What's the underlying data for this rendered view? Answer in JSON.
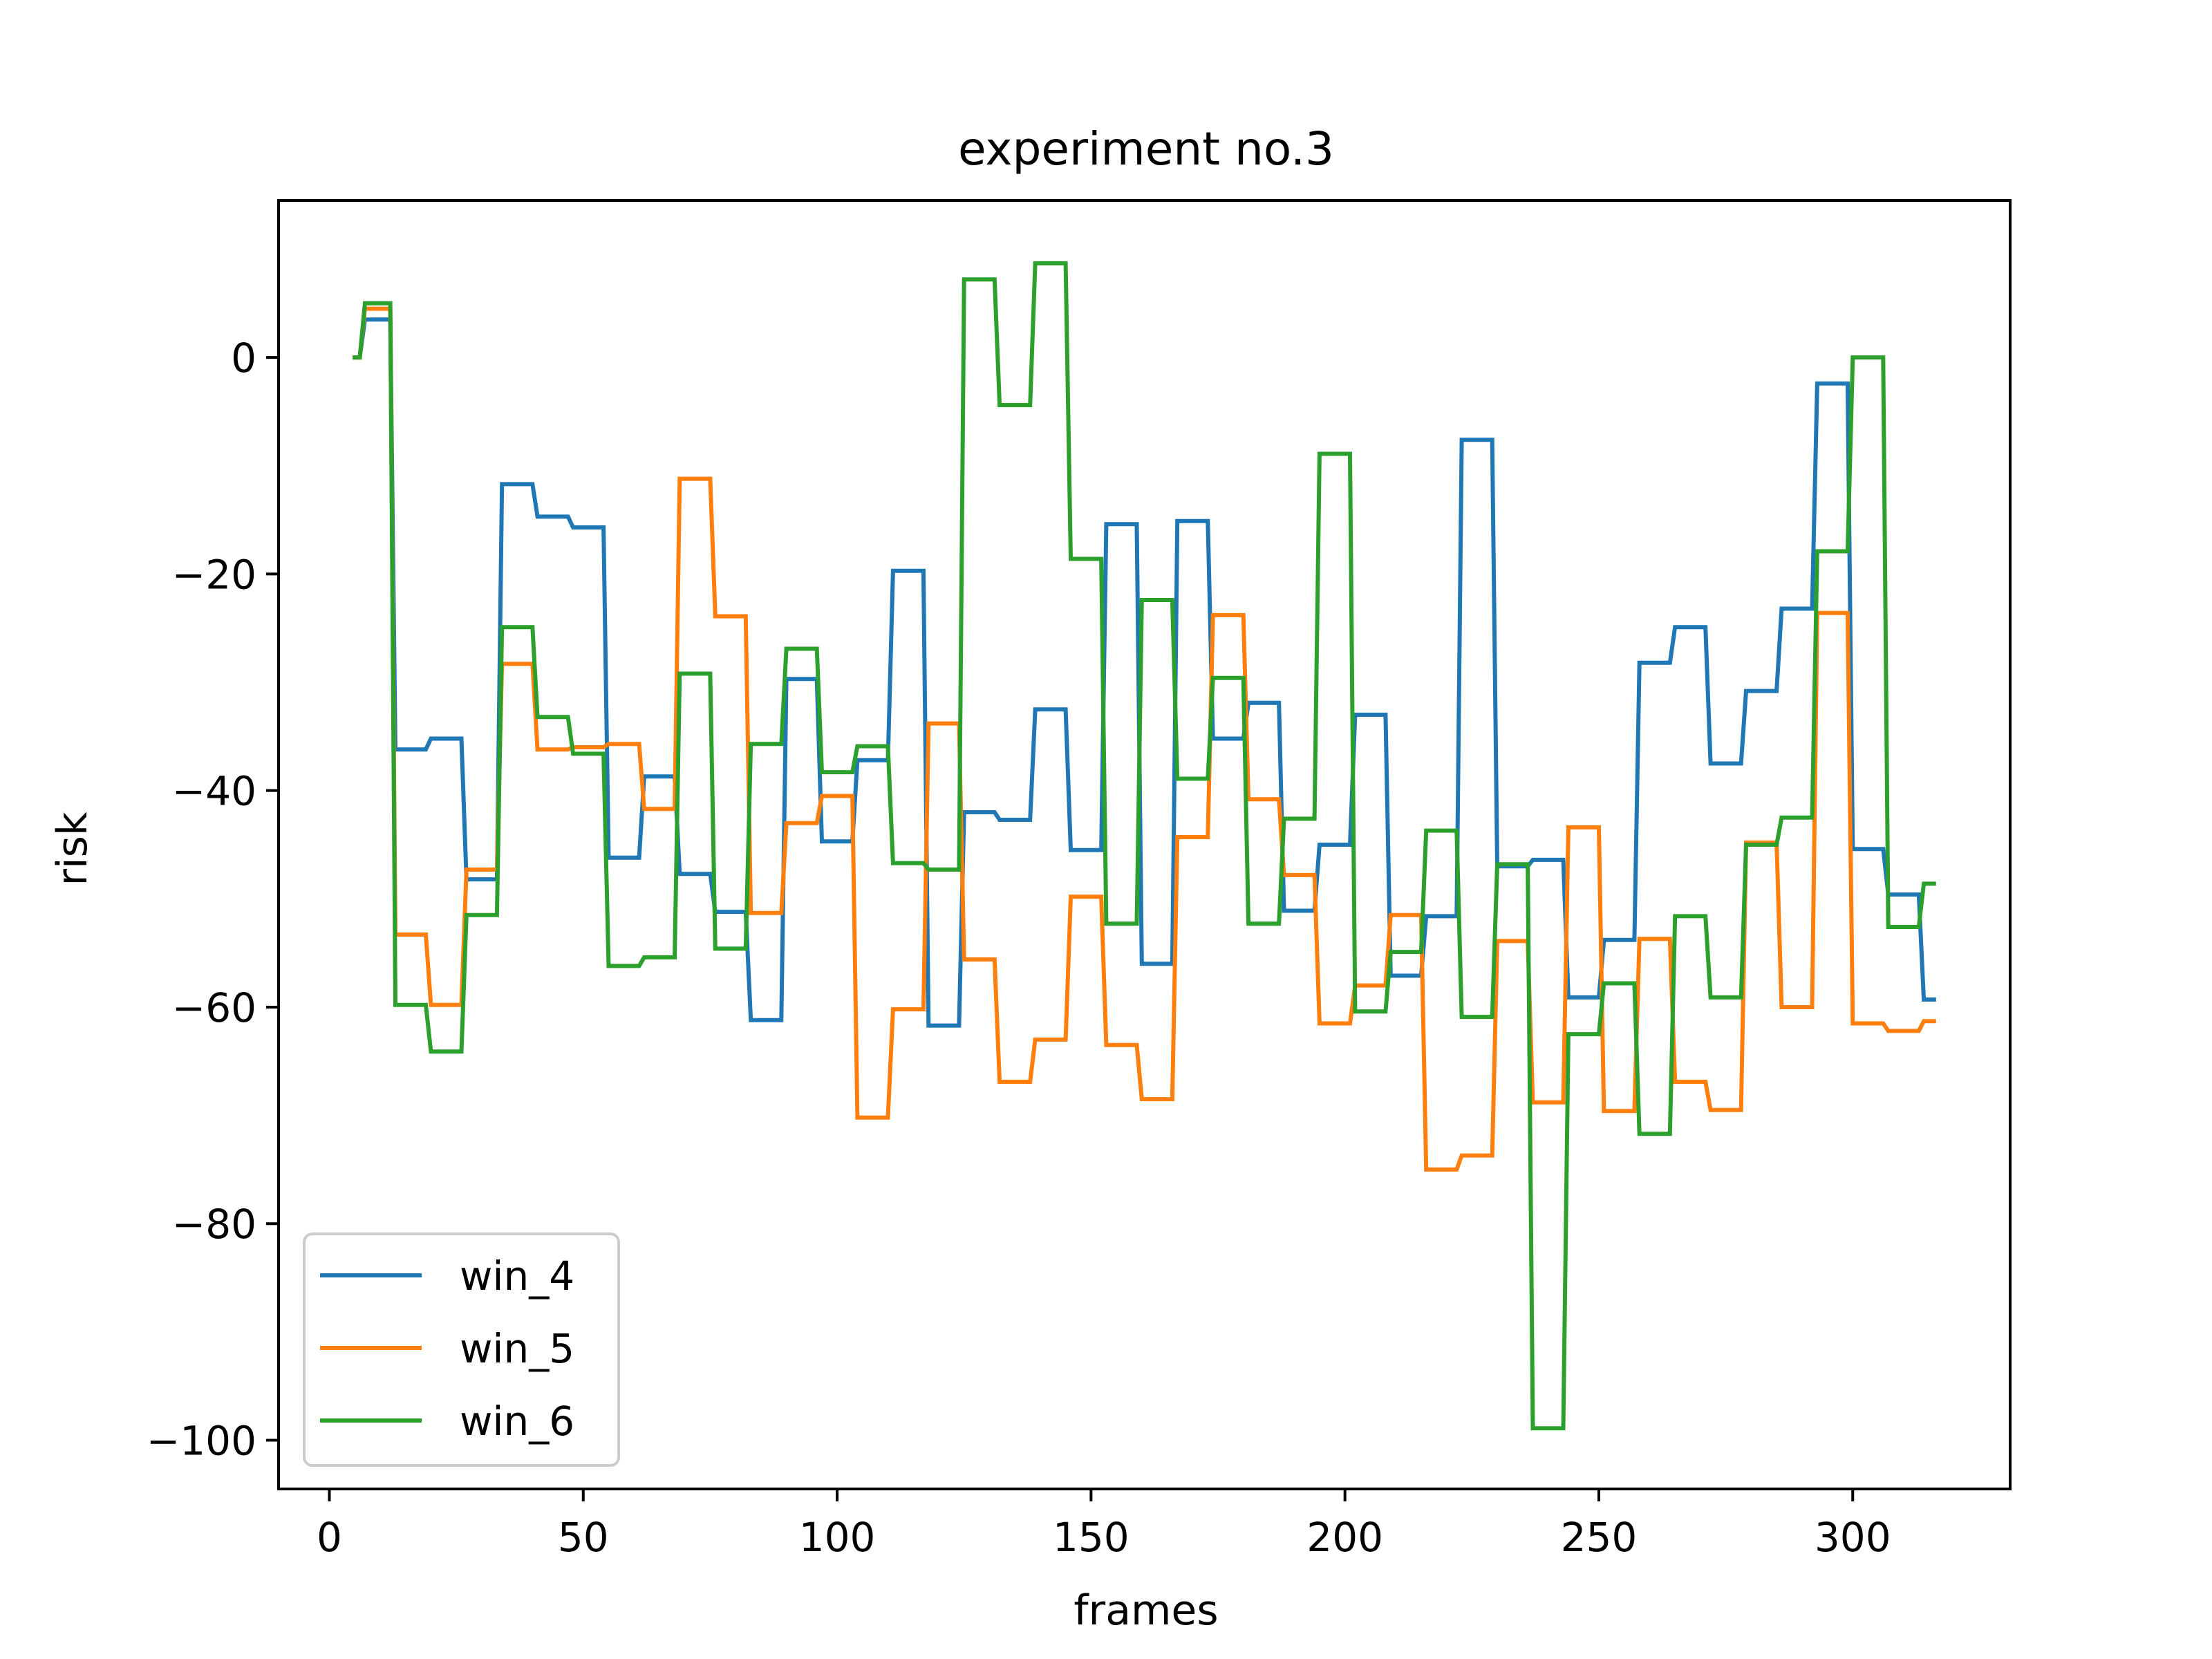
{
  "chart_data": {
    "type": "line",
    "title": "experiment no.3",
    "xlabel": "frames",
    "ylabel": "risk",
    "xlim": [
      -10,
      331
    ],
    "ylim": [
      -104.5,
      14.5
    ],
    "xticks": [
      0,
      50,
      100,
      150,
      200,
      250,
      300
    ],
    "yticks": [
      0,
      -20,
      -40,
      -60,
      -80,
      -100
    ],
    "grid": false,
    "legend_position": "lower-left",
    "series": [
      {
        "name": "win_4",
        "color": "#1f77b4",
        "points": [
          [
            5,
            0
          ],
          [
            6,
            0
          ],
          [
            7,
            3.5
          ],
          [
            12,
            3.5
          ],
          [
            13,
            -36.2
          ],
          [
            19,
            -36.2
          ],
          [
            20,
            -35.2
          ],
          [
            26,
            -35.2
          ],
          [
            27,
            -48.2
          ],
          [
            33,
            -48.2
          ],
          [
            34,
            -11.7
          ],
          [
            40,
            -11.7
          ],
          [
            41,
            -14.7
          ],
          [
            47,
            -14.7
          ],
          [
            48,
            -15.7
          ],
          [
            54,
            -15.7
          ],
          [
            55,
            -46.2
          ],
          [
            61,
            -46.2
          ],
          [
            62,
            -38.7
          ],
          [
            68,
            -38.7
          ],
          [
            69,
            -47.7
          ],
          [
            75,
            -47.7
          ],
          [
            76,
            -51.2
          ],
          [
            82,
            -51.2
          ],
          [
            83,
            -61.2
          ],
          [
            89,
            -61.2
          ],
          [
            90,
            -29.7
          ],
          [
            96,
            -29.7
          ],
          [
            97,
            -44.7
          ],
          [
            103,
            -44.7
          ],
          [
            104,
            -37.2
          ],
          [
            110,
            -37.2
          ],
          [
            111,
            -19.7
          ],
          [
            117,
            -19.7
          ],
          [
            118,
            -61.7
          ],
          [
            124,
            -61.7
          ],
          [
            125,
            -42.0
          ],
          [
            131,
            -42.0
          ],
          [
            132,
            -42.7
          ],
          [
            138,
            -42.7
          ],
          [
            139,
            -32.5
          ],
          [
            145,
            -32.5
          ],
          [
            146,
            -45.5
          ],
          [
            152,
            -45.5
          ],
          [
            153,
            -15.4
          ],
          [
            159,
            -15.4
          ],
          [
            160,
            -56.0
          ],
          [
            166,
            -56.0
          ],
          [
            167,
            -15.1
          ],
          [
            173,
            -15.1
          ],
          [
            174,
            -35.2
          ],
          [
            180,
            -35.2
          ],
          [
            181,
            -31.9
          ],
          [
            187,
            -31.9
          ],
          [
            188,
            -51.1
          ],
          [
            194,
            -51.1
          ],
          [
            195,
            -45.0
          ],
          [
            201,
            -45.0
          ],
          [
            202,
            -33.0
          ],
          [
            208,
            -33.0
          ],
          [
            209,
            -57.1
          ],
          [
            215,
            -57.1
          ],
          [
            216,
            -51.6
          ],
          [
            222,
            -51.6
          ],
          [
            223,
            -7.6
          ],
          [
            229,
            -7.6
          ],
          [
            230,
            -47.0
          ],
          [
            236,
            -47.0
          ],
          [
            237,
            -46.4
          ],
          [
            243,
            -46.4
          ],
          [
            244,
            -59.1
          ],
          [
            250,
            -59.1
          ],
          [
            251,
            -53.8
          ],
          [
            257,
            -53.8
          ],
          [
            258,
            -28.2
          ],
          [
            264,
            -28.2
          ],
          [
            265,
            -24.9
          ],
          [
            271,
            -24.9
          ],
          [
            272,
            -37.5
          ],
          [
            278,
            -37.5
          ],
          [
            279,
            -30.8
          ],
          [
            285,
            -30.8
          ],
          [
            286,
            -23.2
          ],
          [
            292,
            -23.2
          ],
          [
            293,
            -2.4
          ],
          [
            299,
            -2.4
          ],
          [
            300,
            -45.4
          ],
          [
            306,
            -45.4
          ],
          [
            307,
            -49.6
          ],
          [
            313,
            -49.6
          ],
          [
            314,
            -59.3
          ],
          [
            316,
            -59.3
          ]
        ]
      },
      {
        "name": "win_5",
        "color": "#ff7f0e",
        "points": [
          [
            5,
            0
          ],
          [
            6,
            0
          ],
          [
            7,
            4.5
          ],
          [
            12,
            4.5
          ],
          [
            13,
            -53.3
          ],
          [
            19,
            -53.3
          ],
          [
            20,
            -59.8
          ],
          [
            26,
            -59.8
          ],
          [
            27,
            -47.3
          ],
          [
            33,
            -47.3
          ],
          [
            34,
            -28.3
          ],
          [
            40,
            -28.3
          ],
          [
            41,
            -36.2
          ],
          [
            47,
            -36.2
          ],
          [
            48,
            -36.0
          ],
          [
            54,
            -36.0
          ],
          [
            55,
            -35.7
          ],
          [
            61,
            -35.7
          ],
          [
            62,
            -41.7
          ],
          [
            68,
            -41.7
          ],
          [
            69,
            -11.2
          ],
          [
            75,
            -11.2
          ],
          [
            76,
            -23.9
          ],
          [
            82,
            -23.9
          ],
          [
            83,
            -51.3
          ],
          [
            89,
            -51.3
          ],
          [
            90,
            -43.0
          ],
          [
            96,
            -43.0
          ],
          [
            97,
            -40.5
          ],
          [
            103,
            -40.5
          ],
          [
            104,
            -70.2
          ],
          [
            110,
            -70.2
          ],
          [
            111,
            -60.2
          ],
          [
            117,
            -60.2
          ],
          [
            118,
            -33.8
          ],
          [
            124,
            -33.8
          ],
          [
            125,
            -55.6
          ],
          [
            131,
            -55.6
          ],
          [
            132,
            -66.9
          ],
          [
            138,
            -66.9
          ],
          [
            139,
            -63.0
          ],
          [
            145,
            -63.0
          ],
          [
            146,
            -49.8
          ],
          [
            152,
            -49.8
          ],
          [
            153,
            -63.5
          ],
          [
            159,
            -63.5
          ],
          [
            160,
            -68.5
          ],
          [
            166,
            -68.5
          ],
          [
            167,
            -44.3
          ],
          [
            173,
            -44.3
          ],
          [
            174,
            -23.8
          ],
          [
            180,
            -23.8
          ],
          [
            181,
            -40.8
          ],
          [
            187,
            -40.8
          ],
          [
            188,
            -47.8
          ],
          [
            194,
            -47.8
          ],
          [
            195,
            -61.5
          ],
          [
            201,
            -61.5
          ],
          [
            202,
            -58.0
          ],
          [
            208,
            -58.0
          ],
          [
            209,
            -51.5
          ],
          [
            215,
            -51.5
          ],
          [
            216,
            -75.0
          ],
          [
            222,
            -75.0
          ],
          [
            223,
            -73.7
          ],
          [
            229,
            -73.7
          ],
          [
            230,
            -53.9
          ],
          [
            236,
            -53.9
          ],
          [
            237,
            -68.8
          ],
          [
            243,
            -68.8
          ],
          [
            244,
            -43.4
          ],
          [
            250,
            -43.4
          ],
          [
            251,
            -69.6
          ],
          [
            257,
            -69.6
          ],
          [
            258,
            -53.7
          ],
          [
            264,
            -53.7
          ],
          [
            265,
            -66.9
          ],
          [
            271,
            -66.9
          ],
          [
            272,
            -69.5
          ],
          [
            278,
            -69.5
          ],
          [
            279,
            -44.8
          ],
          [
            285,
            -44.8
          ],
          [
            286,
            -60.0
          ],
          [
            292,
            -60.0
          ],
          [
            293,
            -23.6
          ],
          [
            299,
            -23.6
          ],
          [
            300,
            -61.5
          ],
          [
            306,
            -61.5
          ],
          [
            307,
            -62.2
          ],
          [
            313,
            -62.2
          ],
          [
            314,
            -61.3
          ],
          [
            316,
            -61.3
          ]
        ]
      },
      {
        "name": "win_6",
        "color": "#2ca02c",
        "points": [
          [
            5,
            0
          ],
          [
            6,
            0
          ],
          [
            7,
            5.0
          ],
          [
            12,
            5.0
          ],
          [
            13,
            -59.8
          ],
          [
            19,
            -59.8
          ],
          [
            20,
            -64.1
          ],
          [
            26,
            -64.1
          ],
          [
            27,
            -51.5
          ],
          [
            33,
            -51.5
          ],
          [
            34,
            -24.9
          ],
          [
            40,
            -24.9
          ],
          [
            41,
            -33.2
          ],
          [
            47,
            -33.2
          ],
          [
            48,
            -36.6
          ],
          [
            54,
            -36.6
          ],
          [
            55,
            -56.2
          ],
          [
            61,
            -56.2
          ],
          [
            62,
            -55.4
          ],
          [
            68,
            -55.4
          ],
          [
            69,
            -29.2
          ],
          [
            75,
            -29.2
          ],
          [
            76,
            -54.6
          ],
          [
            82,
            -54.6
          ],
          [
            83,
            -35.7
          ],
          [
            89,
            -35.7
          ],
          [
            90,
            -26.9
          ],
          [
            96,
            -26.9
          ],
          [
            97,
            -38.3
          ],
          [
            103,
            -38.3
          ],
          [
            104,
            -35.9
          ],
          [
            110,
            -35.9
          ],
          [
            111,
            -46.7
          ],
          [
            117,
            -46.7
          ],
          [
            118,
            -47.3
          ],
          [
            124,
            -47.3
          ],
          [
            125,
            7.2
          ],
          [
            131,
            7.2
          ],
          [
            132,
            -4.4
          ],
          [
            138,
            -4.4
          ],
          [
            139,
            8.7
          ],
          [
            145,
            8.7
          ],
          [
            146,
            -18.6
          ],
          [
            152,
            -18.6
          ],
          [
            153,
            -52.3
          ],
          [
            159,
            -52.3
          ],
          [
            160,
            -22.4
          ],
          [
            166,
            -22.4
          ],
          [
            167,
            -38.9
          ],
          [
            173,
            -38.9
          ],
          [
            174,
            -29.6
          ],
          [
            180,
            -29.6
          ],
          [
            181,
            -52.3
          ],
          [
            187,
            -52.3
          ],
          [
            188,
            -42.6
          ],
          [
            194,
            -42.6
          ],
          [
            195,
            -8.9
          ],
          [
            201,
            -8.9
          ],
          [
            202,
            -60.4
          ],
          [
            208,
            -60.4
          ],
          [
            209,
            -54.9
          ],
          [
            215,
            -54.9
          ],
          [
            216,
            -43.7
          ],
          [
            222,
            -43.7
          ],
          [
            223,
            -60.9
          ],
          [
            229,
            -60.9
          ],
          [
            230,
            -46.8
          ],
          [
            236,
            -46.8
          ],
          [
            237,
            -98.9
          ],
          [
            243,
            -98.9
          ],
          [
            244,
            -62.5
          ],
          [
            250,
            -62.5
          ],
          [
            251,
            -57.8
          ],
          [
            257,
            -57.8
          ],
          [
            258,
            -71.7
          ],
          [
            264,
            -71.7
          ],
          [
            265,
            -51.6
          ],
          [
            271,
            -51.6
          ],
          [
            272,
            -59.1
          ],
          [
            278,
            -59.1
          ],
          [
            279,
            -45.0
          ],
          [
            285,
            -45.0
          ],
          [
            286,
            -42.5
          ],
          [
            292,
            -42.5
          ],
          [
            293,
            -17.9
          ],
          [
            299,
            -17.9
          ],
          [
            300,
            0
          ],
          [
            306,
            0
          ],
          [
            307,
            -52.6
          ],
          [
            313,
            -52.6
          ],
          [
            314,
            -48.6
          ],
          [
            316,
            -48.6
          ]
        ]
      }
    ]
  }
}
